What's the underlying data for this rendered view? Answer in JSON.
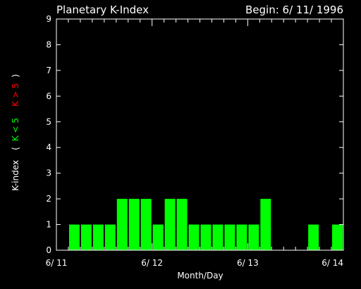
{
  "chart_data": {
    "type": "bar",
    "title": "Planetary K-Index",
    "subtitle": "Begin: 6/ 11/ 1996",
    "xlabel": "Month/Day",
    "ylabel": {
      "prefix": "K-index",
      "open_paren": "(",
      "green_part": "K < 5",
      "red_part": "K > 5",
      "close_paren": ")"
    },
    "ylim": [
      0,
      9
    ],
    "yticks": [
      "0",
      "1",
      "2",
      "3",
      "4",
      "5",
      "6",
      "7",
      "8",
      "9"
    ],
    "xlim_days": [
      0,
      3
    ],
    "xticks": [
      "6/ 11",
      "6/ 12",
      "6/ 13",
      "6/ 14"
    ],
    "bar_hours": 3,
    "values": [
      0,
      1,
      1,
      1,
      1,
      2,
      2,
      2,
      1,
      2,
      2,
      1,
      1,
      1,
      1,
      1,
      1,
      2,
      0,
      0,
      0,
      1,
      0,
      1
    ],
    "colors": {
      "bar": "#00ff00",
      "axes": "#ffffff",
      "background": "#000000",
      "green_label": "#00ff00",
      "red_label": "#ff0000"
    }
  }
}
